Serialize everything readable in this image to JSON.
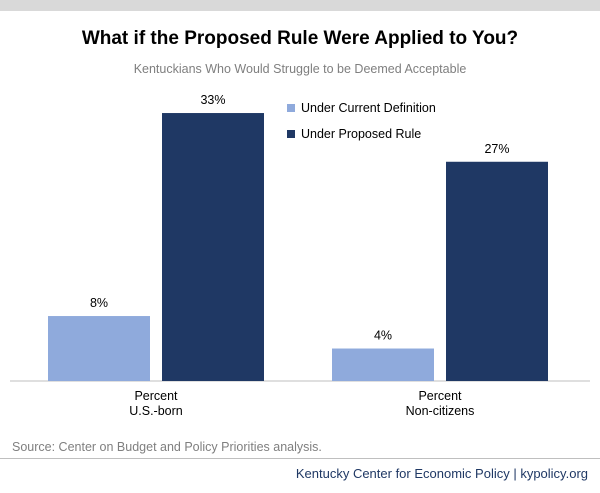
{
  "chart_data": {
    "type": "bar",
    "title": "What if the Proposed Rule Were Applied to You?",
    "subtitle": "Kentuckians Who Would Struggle to be Deemed Acceptable",
    "categories": [
      [
        "Percent",
        "U.S.-born"
      ],
      [
        "Percent",
        "Non-citizens"
      ]
    ],
    "series": [
      {
        "name": "Under Current Definition",
        "values": [
          8,
          4
        ],
        "labels": [
          "8%",
          "4%"
        ],
        "color": "#8faadc"
      },
      {
        "name": "Under Proposed Rule",
        "values": [
          33,
          27
        ],
        "labels": [
          "33%",
          "27%"
        ],
        "color": "#1f3864"
      }
    ],
    "ylim": [
      0,
      36
    ],
    "grid": false,
    "legend": "top-right"
  },
  "source": "Source: Center on Budget and Policy Priorities analysis.",
  "footer": "Kentucky Center for Economic Policy | kypolicy.org"
}
